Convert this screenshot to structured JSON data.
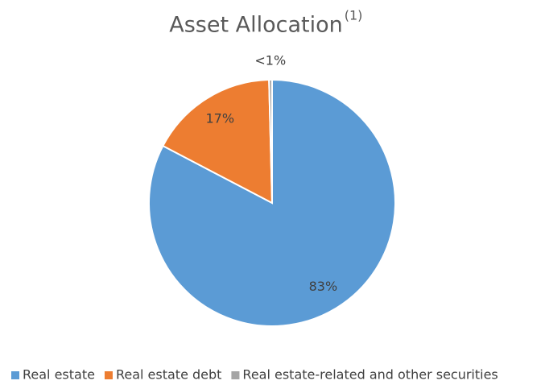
{
  "chart_data": {
    "type": "pie",
    "title": "Asset Allocation",
    "title_note": "(1)",
    "categories": [
      "Real estate",
      "Real estate debt",
      "Real estate-related and other securities"
    ],
    "values": [
      83,
      17,
      0.4
    ],
    "value_labels": [
      "83%",
      "17%",
      "<1%"
    ],
    "colors": [
      "#5b9bd5",
      "#ed7d31",
      "#a5a5a5"
    ],
    "legend": "bottom"
  }
}
